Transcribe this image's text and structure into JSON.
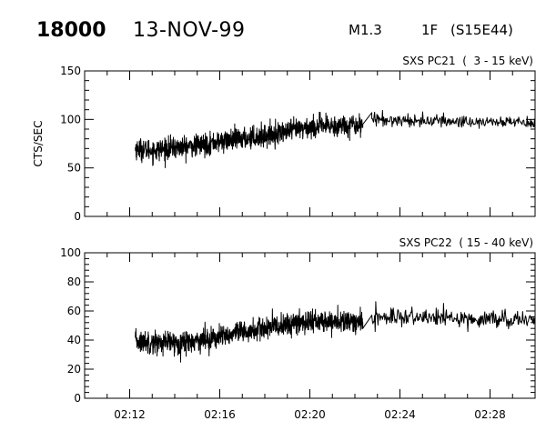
{
  "header": {
    "event_id": "18000",
    "date": "13-NOV-99",
    "flare_class": "M1.3",
    "optical_class": "1F",
    "location": "(S15E44)"
  },
  "chart_data": [
    {
      "type": "line",
      "title": "SXS PC21  (  3 - 15 keV)",
      "ylabel": "CTS/SEC",
      "xlabel": "",
      "x_unit": "minutes (UT 02:MM)",
      "xlim": [
        10.0,
        30.0
      ],
      "ylim": [
        0,
        150
      ],
      "yticks": [
        0,
        50,
        100,
        150
      ],
      "xticks": [
        "02:12",
        "02:16",
        "02:20",
        "02:24",
        "02:28"
      ],
      "xtick_values": [
        12,
        16,
        20,
        24,
        28
      ],
      "grid": false,
      "series": [
        {
          "segments": [
            {
              "t_start": 12.25,
              "t_end": 22.35,
              "trend": [
                [
                  12.25,
                  70
                ],
                [
                  13.0,
                  68
                ],
                [
                  15.0,
                  73
                ],
                [
                  16.0,
                  77
                ],
                [
                  18.0,
                  83
                ],
                [
                  20.0,
                  92
                ],
                [
                  22.35,
                  95
                ]
              ],
              "noise": 10,
              "density": "high"
            },
            {
              "t_start": 22.35,
              "t_end": 22.75,
              "trend": [
                [
                  22.35,
                  95
                ],
                [
                  22.75,
                  107
                ]
              ],
              "noise": 0,
              "density": "gap"
            },
            {
              "t_start": 22.75,
              "t_end": 30.0,
              "trend": [
                [
                  22.75,
                  100
                ],
                [
                  26.0,
                  98
                ],
                [
                  30.0,
                  97
                ]
              ],
              "noise": 6,
              "density": "low"
            }
          ]
        }
      ]
    },
    {
      "type": "line",
      "title": "SXS PC22  ( 15 - 40 keV)",
      "ylabel": "",
      "xlabel": "",
      "x_unit": "minutes (UT 02:MM)",
      "xlim": [
        10.0,
        30.0
      ],
      "ylim": [
        0,
        100
      ],
      "yticks": [
        0,
        20,
        40,
        60,
        80,
        100
      ],
      "xticks": [
        "02:12",
        "02:16",
        "02:20",
        "02:24",
        "02:28"
      ],
      "xtick_values": [
        12,
        16,
        20,
        24,
        28
      ],
      "grid": false,
      "series": [
        {
          "segments": [
            {
              "t_start": 12.25,
              "t_end": 22.35,
              "trend": [
                [
                  12.25,
                  39
                ],
                [
                  14.0,
                  38
                ],
                [
                  16.0,
                  42
                ],
                [
                  18.0,
                  48
                ],
                [
                  20.0,
                  53
                ],
                [
                  22.35,
                  52
                ]
              ],
              "noise": 7,
              "density": "high"
            },
            {
              "t_start": 22.35,
              "t_end": 22.75,
              "trend": [
                [
                  22.35,
                  48
                ],
                [
                  22.75,
                  57
                ]
              ],
              "noise": 0,
              "density": "gap"
            },
            {
              "t_start": 22.75,
              "t_end": 30.0,
              "trend": [
                [
                  22.75,
                  56
                ],
                [
                  26.0,
                  55
                ],
                [
                  30.0,
                  54
                ]
              ],
              "noise": 5,
              "density": "low"
            }
          ]
        }
      ]
    }
  ]
}
